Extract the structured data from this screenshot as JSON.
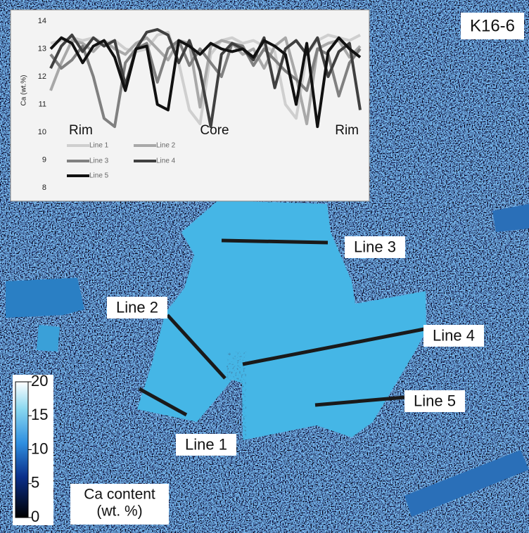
{
  "chart_data": {
    "type": "line",
    "y_label": "Ca (wt.%)",
    "annotations": [
      "Rim",
      "Core",
      "Rim"
    ],
    "ylim": [
      8,
      14
    ],
    "yticks": [
      8,
      9,
      10,
      11,
      12,
      13,
      14
    ],
    "series": [
      {
        "name": "Line 1",
        "color": "#cfcfcf",
        "values": [
          13.2,
          13.3,
          13.4,
          13.3,
          13.4,
          13.2,
          13.3,
          13.0,
          12.9,
          13.0,
          13.5,
          13.6,
          12.5,
          10.8,
          10.3,
          12.8,
          13.3,
          13.4,
          13.2,
          13.3,
          13.1,
          12.9,
          11.0,
          10.5,
          12.8,
          13.3,
          13.5,
          13.4,
          13.3,
          13.5
        ]
      },
      {
        "name": "Line 2",
        "color": "#a8a8a8",
        "values": [
          11.5,
          12.5,
          13.3,
          13.2,
          12.9,
          13.3,
          13.0,
          12.8,
          13.2,
          13.4,
          13.0,
          12.6,
          13.3,
          13.2,
          10.9,
          13.1,
          13.3,
          13.2,
          12.8,
          13.0,
          12.3,
          13.1,
          13.4,
          12.0,
          10.3,
          13.0,
          13.2,
          13.3,
          12.7,
          13.1
        ]
      },
      {
        "name": "Line 3",
        "color": "#808080",
        "values": [
          12.8,
          12.3,
          12.6,
          13.1,
          12.0,
          10.5,
          10.2,
          12.5,
          13.0,
          13.2,
          11.8,
          13.0,
          13.3,
          12.4,
          13.0,
          12.5,
          12.0,
          13.2,
          13.1,
          12.4,
          13.0,
          12.6,
          12.2,
          11.9,
          11.5,
          13.0,
          12.8,
          11.3,
          12.5,
          13.0
        ]
      },
      {
        "name": "Line 4",
        "color": "#404040",
        "values": [
          12.3,
          13.1,
          13.5,
          12.9,
          13.4,
          13.1,
          13.3,
          11.7,
          13.0,
          13.6,
          13.7,
          13.5,
          12.5,
          13.3,
          12.2,
          10.2,
          12.8,
          13.2,
          13.0,
          12.6,
          13.4,
          11.6,
          13.0,
          13.3,
          12.8,
          13.4,
          12.0,
          12.9,
          13.2,
          10.8
        ]
      },
      {
        "name": "Line 5",
        "color": "#111111",
        "values": [
          13.0,
          13.4,
          13.2,
          12.5,
          13.1,
          13.3,
          12.7,
          11.5,
          13.0,
          13.1,
          11.0,
          10.8,
          13.3,
          13.1,
          12.8,
          13.2,
          13.0,
          12.9,
          13.0,
          12.7,
          13.3,
          13.1,
          12.8,
          11.0,
          13.2,
          10.2,
          12.9,
          13.4,
          13.0,
          12.7
        ]
      }
    ]
  },
  "image": {
    "sample": "K16-6",
    "line_labels": [
      "Line 1",
      "Line 2",
      "Line 3",
      "Line 4",
      "Line 5"
    ],
    "colorbar": {
      "lim": [
        0,
        20
      ],
      "ticks": [
        0,
        5,
        10,
        15,
        20
      ],
      "title": [
        "Ca content",
        "(wt. %)"
      ]
    }
  }
}
